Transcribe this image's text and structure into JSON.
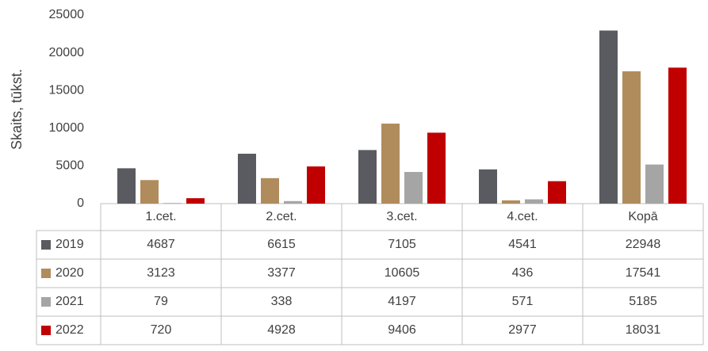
{
  "chart_data": {
    "type": "bar",
    "y_label": "Skaits, tūkst.",
    "categories": [
      "1.cet.",
      "2.cet.",
      "3.cet.",
      "4.cet.",
      "Kopā"
    ],
    "series": [
      {
        "name": "2019",
        "color": "#595b60",
        "values": [
          4687,
          6615,
          7105,
          4541,
          22948
        ]
      },
      {
        "name": "2020",
        "color": "#b08c5c",
        "values": [
          3123,
          3377,
          10605,
          436,
          17541
        ]
      },
      {
        "name": "2021",
        "color": "#a5a5a5",
        "values": [
          79,
          338,
          4197,
          571,
          5185
        ]
      },
      {
        "name": "2022",
        "color": "#c00000",
        "values": [
          720,
          4928,
          9406,
          2977,
          18031
        ]
      }
    ],
    "ylim": [
      0,
      25000
    ],
    "yticks": [
      0,
      5000,
      10000,
      15000,
      20000,
      25000
    ],
    "grid": false
  }
}
